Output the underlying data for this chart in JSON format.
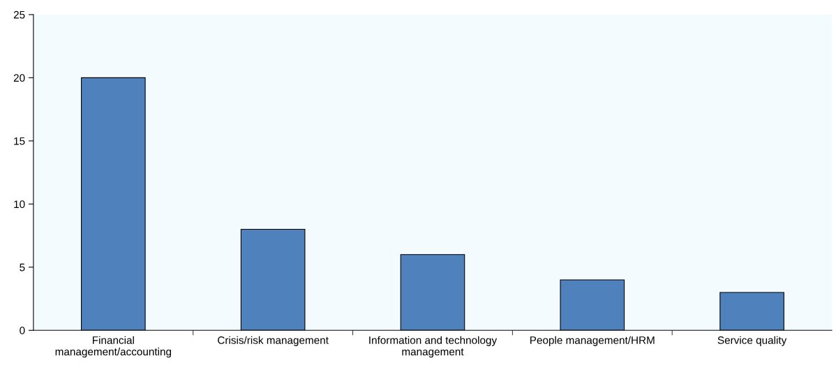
{
  "chart_data": {
    "type": "bar",
    "categories": [
      "Financial management/accounting",
      "Crisis/risk management",
      "Information and technology management",
      "People management/HRM",
      "Service quality"
    ],
    "values": [
      20,
      8,
      6,
      4,
      3
    ],
    "color": "#4f81bd",
    "ylim": [
      0,
      25
    ],
    "yticks": [
      0,
      5,
      10,
      15,
      20,
      25
    ],
    "grid": false
  }
}
